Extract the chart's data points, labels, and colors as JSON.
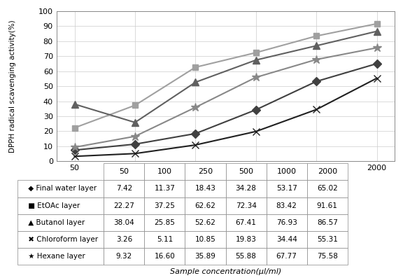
{
  "x": [
    50,
    100,
    250,
    500,
    1000,
    2000
  ],
  "series": [
    {
      "label": "Final water layer",
      "values": [
        7.42,
        11.37,
        18.43,
        34.28,
        53.17,
        65.02
      ],
      "color": "#404040",
      "marker": "D",
      "markersize": 6,
      "linewidth": 1.5
    },
    {
      "label": "EtOAc layer",
      "values": [
        22.27,
        37.25,
        62.62,
        72.34,
        83.42,
        91.61
      ],
      "color": "#a0a0a0",
      "marker": "s",
      "markersize": 6,
      "linewidth": 1.5
    },
    {
      "label": "Butanol layer",
      "values": [
        38.04,
        25.85,
        52.62,
        67.41,
        76.93,
        86.57
      ],
      "color": "#606060",
      "marker": "^",
      "markersize": 7,
      "linewidth": 1.5
    },
    {
      "label": "Chloroform layer",
      "values": [
        3.26,
        5.11,
        10.85,
        19.83,
        34.44,
        55.31
      ],
      "color": "#202020",
      "marker": "x",
      "markersize": 7,
      "linewidth": 1.5
    },
    {
      "label": "Hexane layer",
      "values": [
        9.32,
        16.6,
        35.89,
        55.88,
        67.77,
        75.58
      ],
      "color": "#888888",
      "marker": "*",
      "markersize": 9,
      "linewidth": 1.5
    }
  ],
  "ylabel": "DPPH radical scavenging activity(%)",
  "xlabel": "Sample concentration(μl/ml)",
  "ylim": [
    0,
    100
  ],
  "yticks": [
    0,
    10,
    20,
    30,
    40,
    50,
    60,
    70,
    80,
    90,
    100
  ],
  "table_rows": [
    [
      "Final water layer",
      "7.42",
      "11.37",
      "18.43",
      "34.28",
      "53.17",
      "65.02"
    ],
    [
      "EtOAc layer",
      "22.27",
      "37.25",
      "62.62",
      "72.34",
      "83.42",
      "91.61"
    ],
    [
      "Butanol layer",
      "38.04",
      "25.85",
      "52.62",
      "67.41",
      "76.93",
      "86.57"
    ],
    [
      "Chloroform layer",
      "3.26",
      "5.11",
      "10.85",
      "19.83",
      "34.44",
      "55.31"
    ],
    [
      "Hexane layer",
      "9.32",
      "16.60",
      "35.89",
      "55.88",
      "67.77",
      "75.58"
    ]
  ],
  "table_col_labels": [
    "50",
    "100",
    "250",
    "500",
    "1000",
    "2000"
  ],
  "background_color": "#ffffff",
  "grid_color": "#cccccc"
}
